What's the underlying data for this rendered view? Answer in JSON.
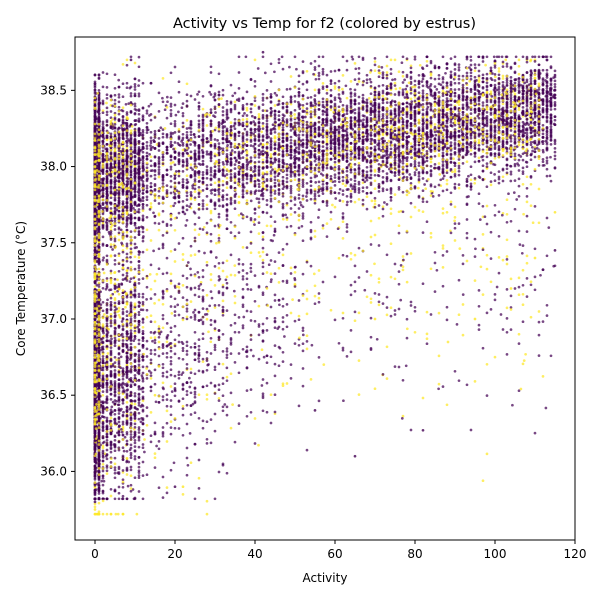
{
  "chart_data": {
    "type": "scatter",
    "title": "Activity vs Temp for f2 (colored by estrus)",
    "xlabel": "Activity",
    "ylabel": "Core Temperature (°C)",
    "xlim": [
      -5,
      120
    ],
    "ylim": [
      35.55,
      38.85
    ],
    "xticks": [
      0,
      20,
      40,
      60,
      80,
      100,
      120
    ],
    "yticks": [
      36.0,
      36.5,
      37.0,
      37.5,
      38.0,
      38.5
    ],
    "ytick_format_decimals": 1,
    "grid": false,
    "legend": "none",
    "colors": {
      "non_estrus": "#440154",
      "estrus": "#fde725"
    },
    "series": [
      {
        "category": "non_estrus",
        "color": "#440154",
        "point_count_approx": 11000
      },
      {
        "category": "estrus",
        "color": "#fde725",
        "point_count_approx": 2400
      }
    ],
    "points": [
      [
        0,
        36.2,
        0
      ],
      [
        0,
        36.5,
        0
      ],
      [
        0,
        37.0,
        0
      ],
      [
        0,
        38.2,
        0
      ],
      [
        0,
        38.4,
        0
      ],
      [
        0,
        38.6,
        0
      ],
      [
        0,
        35.8,
        0
      ],
      [
        0,
        35.75,
        1
      ],
      [
        0,
        36.9,
        1
      ],
      [
        0,
        37.6,
        1
      ],
      [
        2,
        36.6,
        0
      ],
      [
        3,
        36.7,
        1
      ],
      [
        5,
        36.4,
        0
      ],
      [
        7,
        35.72,
        1
      ],
      [
        9,
        38.7,
        0
      ],
      [
        15,
        36.5,
        1
      ],
      [
        20,
        35.9,
        0
      ],
      [
        22,
        35.9,
        1
      ],
      [
        30,
        38.0,
        0
      ],
      [
        35,
        38.2,
        0
      ],
      [
        40,
        38.0,
        0
      ],
      [
        42,
        38.75,
        0
      ],
      [
        50,
        38.0,
        0
      ],
      [
        55,
        36.4,
        0
      ],
      [
        60,
        38.2,
        0
      ],
      [
        65,
        36.1,
        0
      ],
      [
        70,
        37.0,
        1
      ],
      [
        80,
        38.2,
        0
      ],
      [
        82,
        36.27,
        0
      ],
      [
        85,
        38.4,
        1
      ],
      [
        90,
        38.3,
        1
      ],
      [
        95,
        37.0,
        1
      ],
      [
        100,
        38.3,
        0
      ],
      [
        104,
        37.2,
        1
      ],
      [
        110,
        37.4,
        1
      ],
      [
        112,
        38.5,
        0
      ],
      [
        115,
        38.4,
        0
      ],
      [
        115,
        37.45,
        0
      ],
      [
        115,
        37.7,
        1
      ],
      [
        115,
        38.6,
        0
      ]
    ]
  }
}
